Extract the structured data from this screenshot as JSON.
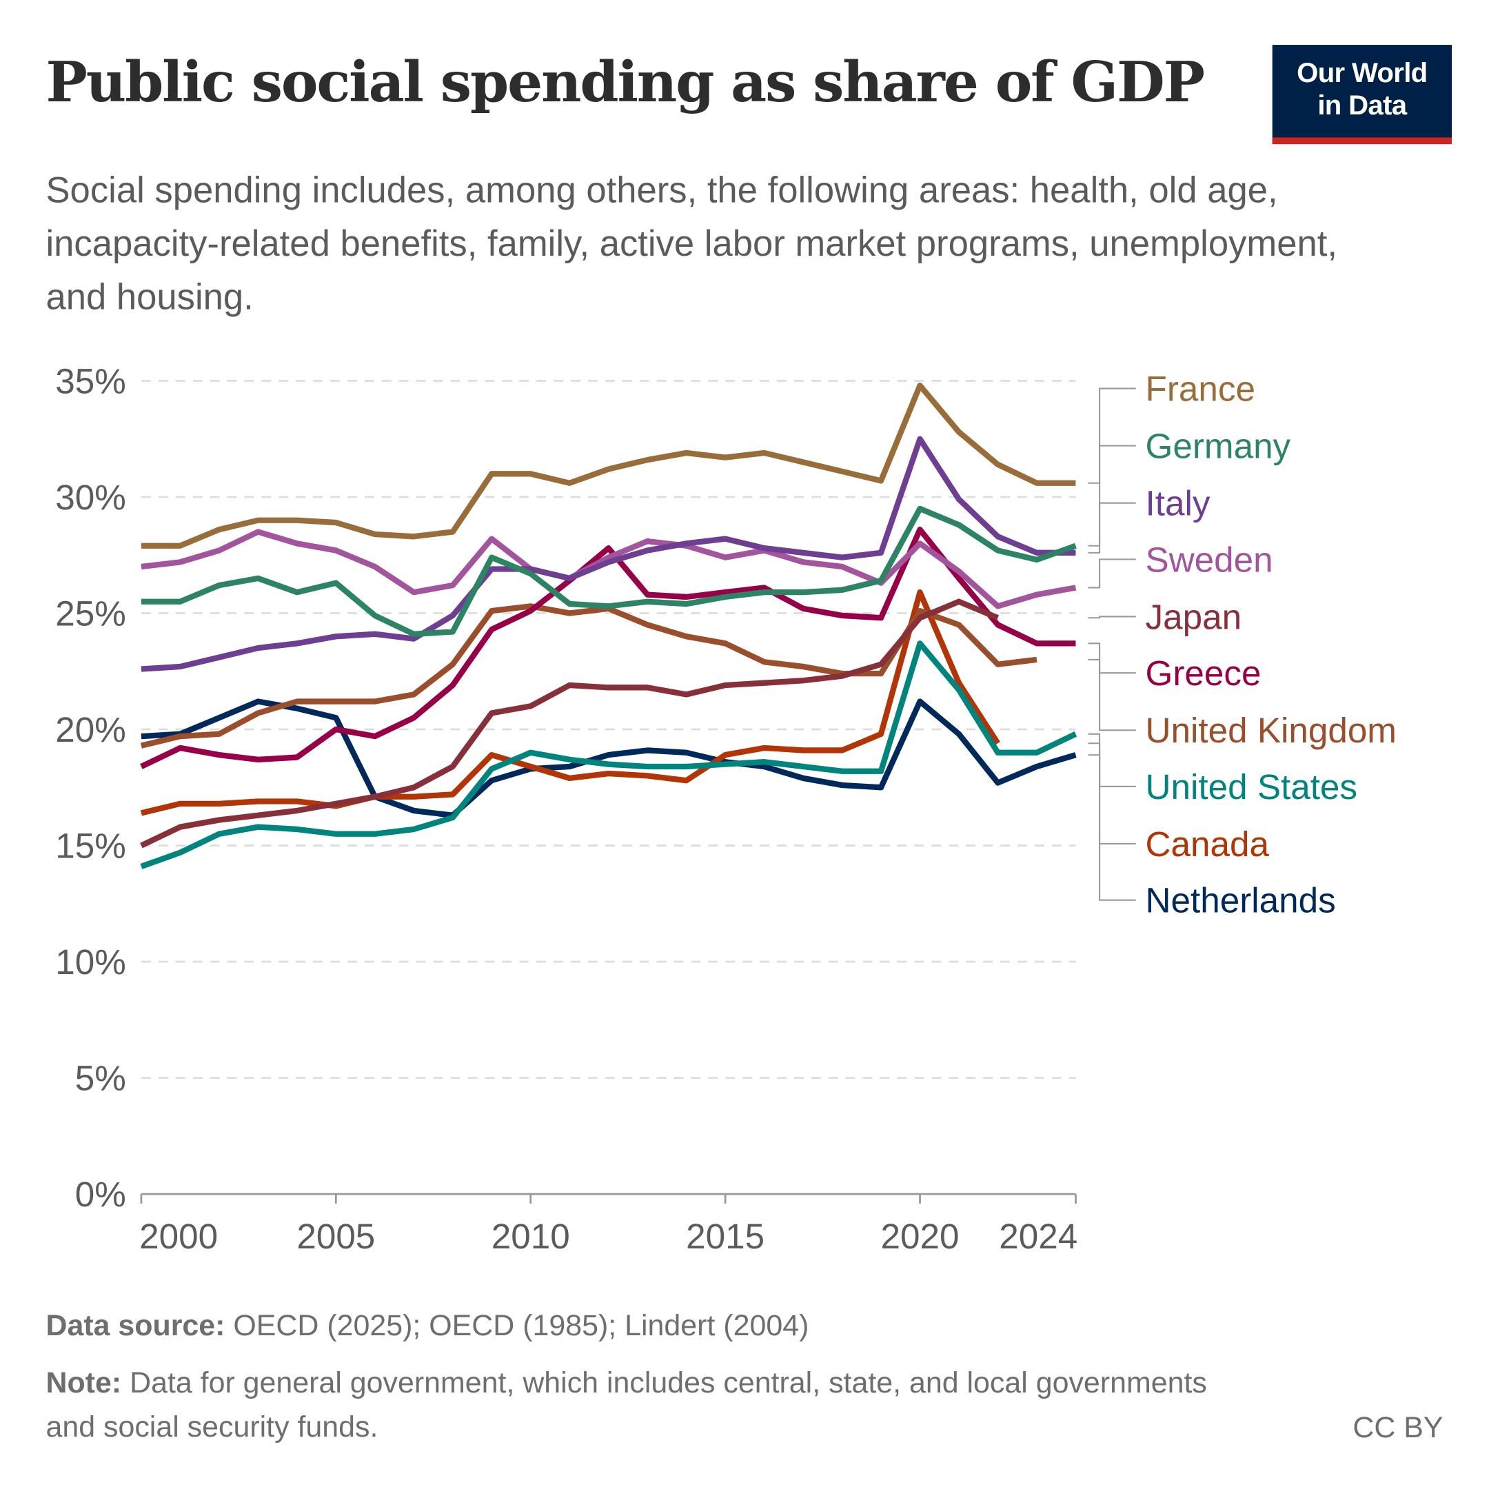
{
  "header": {
    "title": "Public social spending as share of GDP",
    "subtitle": "Social spending includes, among others, the following areas: health, old age, incapacity-related benefits, family, active labor market programs, unemployment, and housing.",
    "logo_line1": "Our World",
    "logo_line2": "in Data"
  },
  "footer": {
    "source_label": "Data source:",
    "source_text": " OECD (2025); OECD (1985); Lindert (2004)",
    "note_label": "Note:",
    "note_text": " Data for general government, which includes central, state, and local governments and social security funds.",
    "license": "CC BY"
  },
  "chart_data": {
    "type": "line",
    "title": "Public social spending as share of GDP",
    "xlabel": "",
    "ylabel": "",
    "xlim": [
      2000,
      2024
    ],
    "ylim": [
      0,
      35
    ],
    "y_ticks": [
      0,
      5,
      10,
      15,
      20,
      25,
      30,
      35
    ],
    "y_tick_labels": [
      "0%",
      "5%",
      "10%",
      "15%",
      "20%",
      "25%",
      "30%",
      "35%"
    ],
    "x_ticks": [
      2000,
      2005,
      2010,
      2015,
      2020,
      2024
    ],
    "x_tick_labels": [
      "2000",
      "2005",
      "2010",
      "2015",
      "2020",
      "2024"
    ],
    "grid": "horizontal dashed",
    "legend": "right (line-end labels)",
    "x": [
      2000,
      2001,
      2002,
      2003,
      2004,
      2005,
      2006,
      2007,
      2008,
      2009,
      2010,
      2011,
      2012,
      2013,
      2014,
      2015,
      2016,
      2017,
      2018,
      2019,
      2020,
      2021,
      2022,
      2023,
      2024
    ],
    "series": [
      {
        "name": "France",
        "color": "#996d39",
        "values": [
          27.9,
          27.9,
          28.6,
          29.0,
          29.0,
          28.9,
          28.4,
          28.3,
          28.5,
          31.0,
          31.0,
          30.6,
          31.2,
          31.6,
          31.9,
          31.7,
          31.9,
          31.5,
          31.1,
          30.7,
          34.8,
          32.8,
          31.4,
          30.6,
          30.6
        ]
      },
      {
        "name": "Germany",
        "color": "#2c8465",
        "values": [
          25.5,
          25.5,
          26.2,
          26.5,
          25.9,
          26.3,
          24.9,
          24.1,
          24.2,
          27.4,
          26.7,
          25.4,
          25.3,
          25.5,
          25.4,
          25.7,
          25.9,
          25.9,
          26.0,
          26.4,
          29.5,
          28.8,
          27.7,
          27.3,
          27.9
        ]
      },
      {
        "name": "Italy",
        "color": "#6d3e91",
        "values": [
          22.6,
          22.7,
          23.1,
          23.5,
          23.7,
          24.0,
          24.1,
          23.9,
          24.9,
          26.9,
          26.9,
          26.5,
          27.2,
          27.7,
          28.0,
          28.2,
          27.8,
          27.6,
          27.4,
          27.6,
          32.5,
          29.9,
          28.3,
          27.6,
          27.6
        ]
      },
      {
        "name": "Sweden",
        "color": "#a2559c",
        "values": [
          27.0,
          27.2,
          27.7,
          28.5,
          28.0,
          27.7,
          27.0,
          25.9,
          26.2,
          28.2,
          26.9,
          26.5,
          27.4,
          28.1,
          27.9,
          27.4,
          27.7,
          27.2,
          27.0,
          26.3,
          28.0,
          26.8,
          25.3,
          25.8,
          26.1
        ]
      },
      {
        "name": "Japan",
        "color": "#883039",
        "values": [
          15.0,
          15.8,
          16.1,
          16.3,
          16.5,
          16.8,
          17.1,
          17.5,
          18.4,
          20.7,
          21.0,
          21.9,
          21.8,
          21.8,
          21.5,
          21.9,
          22.0,
          22.1,
          22.3,
          22.8,
          24.8,
          25.5,
          24.8,
          null,
          null
        ]
      },
      {
        "name": "Greece",
        "color": "#970046",
        "values": [
          18.4,
          19.2,
          18.9,
          18.7,
          18.8,
          20.0,
          19.7,
          20.5,
          21.9,
          24.3,
          25.1,
          26.4,
          27.8,
          25.8,
          25.7,
          25.9,
          26.1,
          25.2,
          24.9,
          24.8,
          28.6,
          26.5,
          24.5,
          23.7,
          23.7
        ]
      },
      {
        "name": "United Kingdom",
        "color": "#9a4e2b",
        "values": [
          19.3,
          19.7,
          19.8,
          20.7,
          21.2,
          21.2,
          21.2,
          21.5,
          22.8,
          25.1,
          25.3,
          25.0,
          25.2,
          24.5,
          24.0,
          23.7,
          22.9,
          22.7,
          22.4,
          22.4,
          25.1,
          24.5,
          22.8,
          23.0,
          null
        ]
      },
      {
        "name": "United States",
        "color": "#00847e",
        "values": [
          14.1,
          14.7,
          15.5,
          15.8,
          15.7,
          15.5,
          15.5,
          15.7,
          16.2,
          18.3,
          19.0,
          18.7,
          18.5,
          18.4,
          18.4,
          18.5,
          18.6,
          18.4,
          18.2,
          18.2,
          23.7,
          21.7,
          19.0,
          19.0,
          19.8
        ]
      },
      {
        "name": "Canada",
        "color": "#b13507",
        "values": [
          16.4,
          16.8,
          16.8,
          16.9,
          16.9,
          16.7,
          17.1,
          17.1,
          17.2,
          18.9,
          18.4,
          17.9,
          18.1,
          18.0,
          17.8,
          18.9,
          19.2,
          19.1,
          19.1,
          19.8,
          25.9,
          22.0,
          19.4,
          null,
          null
        ]
      },
      {
        "name": "Netherlands",
        "color": "#00295b",
        "values": [
          19.7,
          19.8,
          20.5,
          21.2,
          20.9,
          20.5,
          17.1,
          16.5,
          16.3,
          17.8,
          18.3,
          18.4,
          18.9,
          19.1,
          19.0,
          18.6,
          18.4,
          17.9,
          17.6,
          17.5,
          21.2,
          19.8,
          17.7,
          18.4,
          18.9
        ]
      }
    ]
  }
}
